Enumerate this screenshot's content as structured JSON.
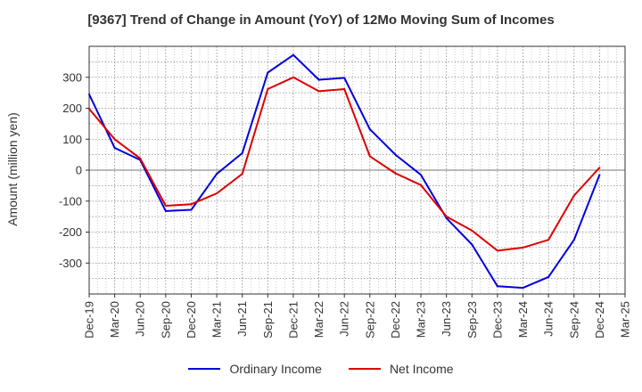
{
  "chart_data": {
    "type": "line",
    "title": "[9367]  Trend of Change in Amount (YoY) of 12Mo Moving Sum of Incomes",
    "xlabel": "",
    "ylabel": "Amount (million yen)",
    "ylim": [
      -400,
      400
    ],
    "yticks": [
      -300,
      -200,
      -100,
      0,
      100,
      200,
      300
    ],
    "grid": true,
    "legend_position": "bottom",
    "categories": [
      "Dec-19",
      "Mar-20",
      "Jun-20",
      "Sep-20",
      "Dec-20",
      "Mar-21",
      "Jun-21",
      "Sep-21",
      "Dec-21",
      "Mar-22",
      "Jun-22",
      "Sep-22",
      "Dec-22",
      "Mar-23",
      "Jun-23",
      "Sep-23",
      "Dec-23",
      "Mar-24",
      "Jun-24",
      "Sep-24",
      "Dec-24",
      "Mar-25"
    ],
    "series": [
      {
        "name": "Ordinary Income",
        "color": "#0000dd",
        "values": [
          245,
          72,
          33,
          -132,
          -128,
          -12,
          55,
          315,
          372,
          292,
          298,
          132,
          50,
          -15,
          -155,
          -240,
          -375,
          -380,
          -345,
          -225,
          -15,
          null
        ]
      },
      {
        "name": "Net Income",
        "color": "#dd0000",
        "values": [
          198,
          100,
          38,
          -115,
          -110,
          -75,
          -12,
          262,
          300,
          255,
          262,
          45,
          -10,
          -48,
          -150,
          -195,
          -260,
          -250,
          -225,
          -82,
          8,
          null
        ]
      }
    ]
  }
}
